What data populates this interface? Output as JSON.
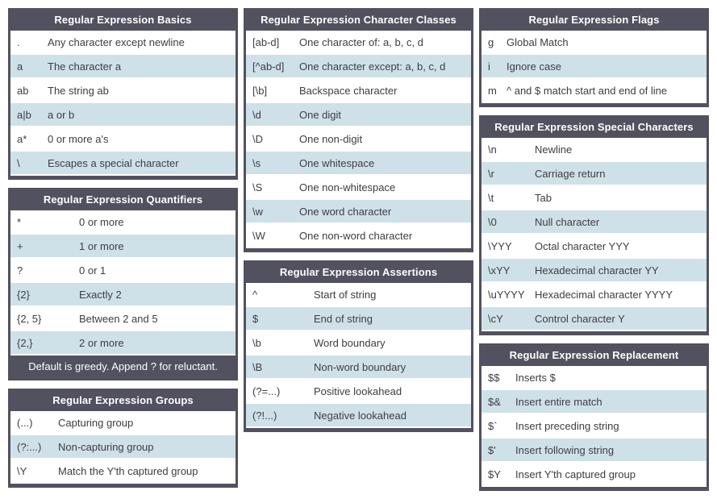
{
  "theme": {
    "header_bg": "#52515f",
    "alt_row_bg": "#cfe1e8",
    "row_bg": "#ffffff",
    "header_text": "#ffffff",
    "body_text": "#3d3d43"
  },
  "columns": [
    {
      "tables": [
        {
          "id": "basics",
          "title": "Regular Expression Basics",
          "rows": [
            {
              "code": ".",
              "desc": "Any character except newline"
            },
            {
              "code": "a",
              "desc": "The character a"
            },
            {
              "code": "ab",
              "desc": "The string ab"
            },
            {
              "code": "a|b",
              "desc": "a or b"
            },
            {
              "code": "a*",
              "desc": "0 or more a's"
            },
            {
              "code": "\\",
              "desc": "Escapes a special character"
            }
          ]
        },
        {
          "id": "quantifiers",
          "title": "Regular Expression Quantifiers",
          "rows": [
            {
              "code": "*",
              "desc": "0 or more"
            },
            {
              "code": "+",
              "desc": "1 or more"
            },
            {
              "code": "?",
              "desc": "0 or 1"
            },
            {
              "code": "{2}",
              "desc": "Exactly 2"
            },
            {
              "code": "{2, 5}",
              "desc": "Between 2 and 5"
            },
            {
              "code": "{2,}",
              "desc": "2 or more"
            }
          ],
          "footer": "Default is greedy. Append ? for reluctant."
        },
        {
          "id": "groups",
          "title": "Regular Expression Groups",
          "rows": [
            {
              "code": "(...)",
              "desc": "Capturing group"
            },
            {
              "code": "(?:...)",
              "desc": "Non-capturing group"
            },
            {
              "code": "\\Y",
              "desc": "Match the Y'th captured group"
            }
          ]
        }
      ]
    },
    {
      "tables": [
        {
          "id": "character-classes",
          "title": "Regular Expression Character Classes",
          "rows": [
            {
              "code": "[ab-d]",
              "desc": "One character of: a, b, c, d"
            },
            {
              "code": "[^ab-d]",
              "desc": "One character except: a, b, c, d"
            },
            {
              "code": "[\\b]",
              "desc": "Backspace character"
            },
            {
              "code": "\\d",
              "desc": "One digit"
            },
            {
              "code": "\\D",
              "desc": "One non-digit"
            },
            {
              "code": "\\s",
              "desc": "One whitespace"
            },
            {
              "code": "\\S",
              "desc": "One non-whitespace"
            },
            {
              "code": "\\w",
              "desc": "One word character"
            },
            {
              "code": "\\W",
              "desc": "One non-word character"
            }
          ]
        },
        {
          "id": "assertions",
          "title": "Regular Expression Assertions",
          "rows": [
            {
              "code": "^",
              "desc": "Start of string"
            },
            {
              "code": "$",
              "desc": "End of string"
            },
            {
              "code": "\\b",
              "desc": "Word boundary"
            },
            {
              "code": "\\B",
              "desc": "Non-word boundary"
            },
            {
              "code": "(?=...)",
              "desc": "Positive lookahead"
            },
            {
              "code": "(?!...)",
              "desc": "Negative lookahead"
            }
          ]
        }
      ]
    },
    {
      "tables": [
        {
          "id": "flags",
          "title": "Regular Expression Flags",
          "rows": [
            {
              "code": "g",
              "desc": "Global Match"
            },
            {
              "code": "i",
              "desc": "Ignore case"
            },
            {
              "code": "m",
              "desc": "^ and $ match start and end of line"
            }
          ]
        },
        {
          "id": "special-characters",
          "title": "Regular Expression Special Characters",
          "rows": [
            {
              "code": "\\n",
              "desc": "Newline"
            },
            {
              "code": "\\r",
              "desc": "Carriage return"
            },
            {
              "code": "\\t",
              "desc": "Tab"
            },
            {
              "code": "\\0",
              "desc": "Null character"
            },
            {
              "code": "\\YYY",
              "desc": "Octal character YYY"
            },
            {
              "code": "\\xYY",
              "desc": "Hexadecimal character YY"
            },
            {
              "code": "\\uYYYY",
              "desc": "Hexadecimal character YYYY"
            },
            {
              "code": "\\cY",
              "desc": "Control character Y"
            }
          ]
        },
        {
          "id": "replacement",
          "title": "Regular Expression Replacement",
          "rows": [
            {
              "code": "$$",
              "desc": "Inserts $"
            },
            {
              "code": "$&",
              "desc": "Insert entire match"
            },
            {
              "code": "$`",
              "desc": "Insert preceding string"
            },
            {
              "code": "$'",
              "desc": "Insert following string"
            },
            {
              "code": "$Y",
              "desc": "Insert Y'th captured group"
            }
          ]
        }
      ]
    }
  ]
}
